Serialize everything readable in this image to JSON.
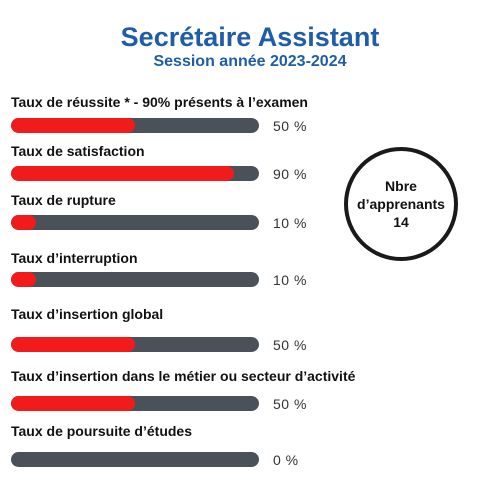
{
  "header": {
    "title": "Secrétaire Assistant",
    "subtitle": "Session année 2023-2024"
  },
  "colors": {
    "title": "#1f5da8",
    "bar_fill": "#f21b1b",
    "bar_track": "#4b5158"
  },
  "stat_circle": {
    "line1": "Nbre",
    "line2": "d’apprenants",
    "value": "14"
  },
  "chart_data": {
    "type": "bar",
    "orientation": "horizontal",
    "categories": [
      "Taux de réussite * - 90% présents à l’examen",
      "Taux de satisfaction",
      "Taux de rupture",
      "Taux d’interruption",
      "Taux d’insertion global",
      "Taux d’insertion dans le métier ou secteur d’activité",
      "Taux de poursuite d’études"
    ],
    "values": [
      50,
      90,
      10,
      10,
      50,
      50,
      0
    ],
    "value_labels": [
      "50 %",
      "90 %",
      "10 %",
      "10 %",
      "50 %",
      "50 %",
      "0 %"
    ],
    "xlim": [
      0,
      100
    ]
  }
}
